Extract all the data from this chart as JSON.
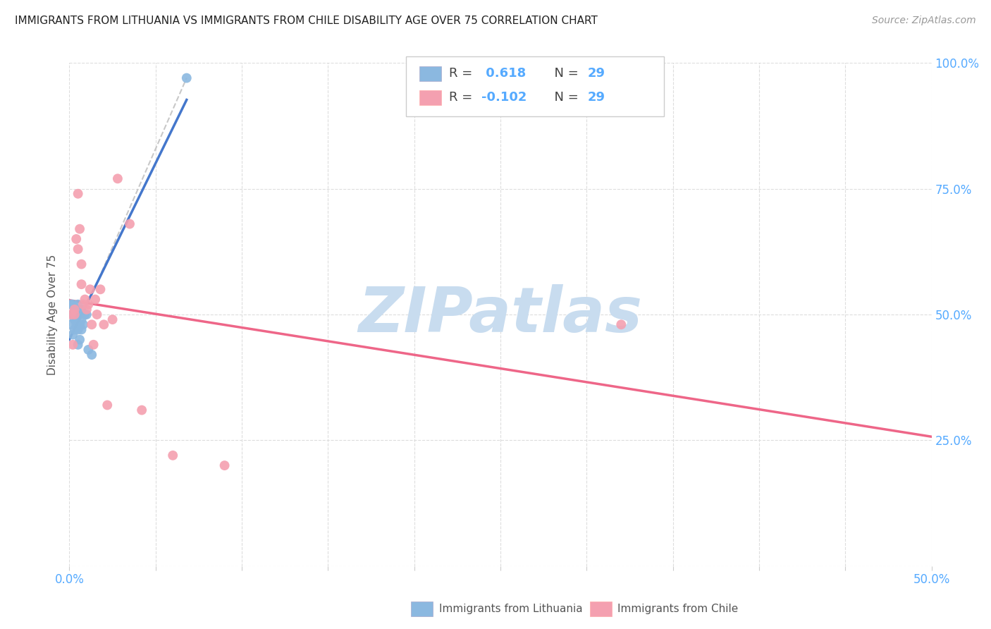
{
  "title": "IMMIGRANTS FROM LITHUANIA VS IMMIGRANTS FROM CHILE DISABILITY AGE OVER 75 CORRELATION CHART",
  "source": "Source: ZipAtlas.com",
  "ylabel": "Disability Age Over 75",
  "xlim": [
    0.0,
    0.5
  ],
  "ylim": [
    0.0,
    1.0
  ],
  "r_lithuania": 0.618,
  "n_lithuania": 29,
  "r_chile": -0.102,
  "n_chile": 29,
  "color_lithuania": "#8BB8E0",
  "color_chile": "#F4A0B0",
  "color_trend_lithuania": "#4477CC",
  "color_trend_chile": "#EE6688",
  "color_text_blue": "#55AAFF",
  "color_title": "#222222",
  "color_source": "#999999",
  "lithuania_x": [
    0.001,
    0.001,
    0.002,
    0.002,
    0.002,
    0.003,
    0.003,
    0.003,
    0.003,
    0.004,
    0.004,
    0.004,
    0.004,
    0.005,
    0.005,
    0.005,
    0.005,
    0.006,
    0.006,
    0.006,
    0.007,
    0.007,
    0.007,
    0.008,
    0.009,
    0.01,
    0.011,
    0.013,
    0.068
  ],
  "lithuania_y": [
    0.52,
    0.48,
    0.5,
    0.52,
    0.46,
    0.49,
    0.5,
    0.51,
    0.47,
    0.48,
    0.5,
    0.49,
    0.51,
    0.44,
    0.47,
    0.5,
    0.52,
    0.45,
    0.48,
    0.5,
    0.47,
    0.49,
    0.51,
    0.48,
    0.5,
    0.5,
    0.43,
    0.42,
    0.97
  ],
  "chile_x": [
    0.001,
    0.002,
    0.003,
    0.003,
    0.004,
    0.005,
    0.006,
    0.007,
    0.007,
    0.008,
    0.009,
    0.01,
    0.011,
    0.012,
    0.013,
    0.014,
    0.015,
    0.016,
    0.018,
    0.02,
    0.022,
    0.025,
    0.028,
    0.035,
    0.042,
    0.06,
    0.09,
    0.32,
    0.005
  ],
  "chile_y": [
    0.5,
    0.44,
    0.5,
    0.51,
    0.65,
    0.63,
    0.67,
    0.56,
    0.6,
    0.52,
    0.53,
    0.51,
    0.52,
    0.55,
    0.48,
    0.44,
    0.53,
    0.5,
    0.55,
    0.48,
    0.32,
    0.49,
    0.77,
    0.68,
    0.31,
    0.22,
    0.2,
    0.48,
    0.74
  ],
  "background_color": "#FFFFFF",
  "grid_color": "#DDDDDD",
  "watermark_color": "#C8DCEF",
  "watermark_text": "ZIPatlas"
}
